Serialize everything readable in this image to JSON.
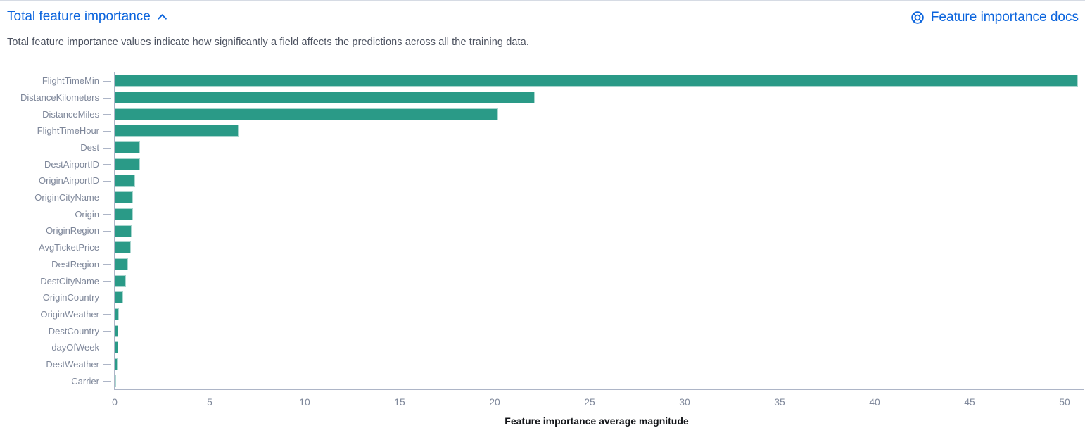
{
  "header": {
    "title": "Total feature importance",
    "docs_link_label": "Feature importance docs"
  },
  "description": "Total feature importance values indicate how significantly a field affects the predictions across all the training data.",
  "icons": {
    "collapse": "chevron-up-icon",
    "docs": "life-ring-icon"
  },
  "colors": {
    "link_blue": "#0b64dd",
    "bar_fill": "#2a9a87",
    "axis_line": "#adb5c7",
    "tick_label": "#7e879a",
    "description_text": "#4d5361",
    "axis_title": "#14161a",
    "top_border": "#d6dbe4"
  },
  "chart_data": {
    "type": "bar",
    "orientation": "horizontal",
    "title": "",
    "xlabel": "Feature importance average magnitude",
    "ylabel": "",
    "xlim": [
      0,
      50.74
    ],
    "xticks": [
      0,
      5,
      10,
      15,
      20,
      25,
      30,
      35,
      40,
      45,
      50
    ],
    "grid": false,
    "legend": "none",
    "categories": [
      "FlightTimeMin",
      "DistanceKilometers",
      "DistanceMiles",
      "FlightTimeHour",
      "Dest",
      "DestAirportID",
      "OriginAirportID",
      "OriginCityName",
      "Origin",
      "OriginRegion",
      "AvgTicketPrice",
      "DestRegion",
      "DestCityName",
      "OriginCountry",
      "OriginWeather",
      "DestCountry",
      "dayOfWeek",
      "DestWeather",
      "Carrier"
    ],
    "values": [
      50.7,
      22.1,
      20.2,
      6.5,
      1.35,
      1.32,
      1.08,
      0.98,
      0.95,
      0.9,
      0.85,
      0.72,
      0.6,
      0.43,
      0.23,
      0.19,
      0.18,
      0.13,
      0.05
    ]
  }
}
